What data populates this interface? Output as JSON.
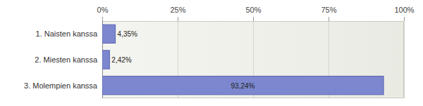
{
  "chart_data": {
    "type": "bar",
    "orientation": "horizontal",
    "categories": [
      "1. Naisten kanssa",
      "2. Miesten kanssa",
      "3. Molempien kanssa"
    ],
    "values": [
      4.35,
      2.42,
      93.24
    ],
    "value_labels": [
      "4,35%",
      "2,42%",
      "93,24%"
    ],
    "color": "#7c87cf",
    "xlim": [
      0,
      100
    ],
    "xticks": [
      {
        "value": 0,
        "label": "0%"
      },
      {
        "value": 25,
        "label": "25%"
      },
      {
        "value": 50,
        "label": "50%"
      },
      {
        "value": 75,
        "label": "75%"
      },
      {
        "value": 100,
        "label": "100%"
      }
    ],
    "grid": true,
    "data_labels": true
  }
}
